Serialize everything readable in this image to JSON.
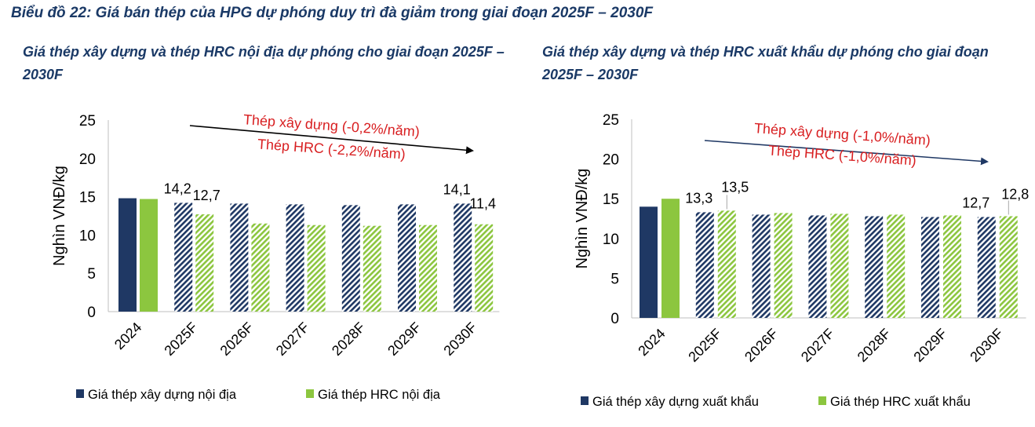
{
  "title": "Biểu đồ 22: Giá bán thép của HPG dự phóng duy trì đà giảm trong giai đoạn 2025F – 2030F",
  "colors": {
    "navy": "#1f3864",
    "green": "#8cc63f",
    "red": "#d81e20",
    "title": "#1a3966"
  },
  "chart_data": [
    {
      "type": "bar",
      "title": "Giá thép xây dựng và thép HRC nội địa dự phóng cho giai đoạn 2025F – 2030F",
      "categories": [
        "2024",
        "2025F",
        "2026F",
        "2027F",
        "2028F",
        "2029F",
        "2030F"
      ],
      "ylabel": "Nghìn VNĐ/kg",
      "ylim": [
        0,
        25
      ],
      "yticks": [
        "0",
        "5",
        "10",
        "15",
        "20",
        "25"
      ],
      "grid": false,
      "legend_position": "bottom",
      "series": [
        {
          "name": "Giá thép xây dựng nội địa",
          "values": [
            14.8,
            14.2,
            14.1,
            14.0,
            13.9,
            14.0,
            14.1
          ],
          "labels": [
            "",
            "14,2",
            "",
            "",
            "",
            "",
            "14,1"
          ]
        },
        {
          "name": "Giá thép HRC nội địa",
          "values": [
            14.7,
            12.7,
            11.5,
            11.3,
            11.2,
            11.3,
            11.4
          ],
          "labels": [
            "",
            "12,7",
            "",
            "",
            "",
            "",
            "11,4"
          ]
        }
      ],
      "annotations": [
        "Thép xây dựng (-0,2%/năm)",
        "Thép HRC (-2,2%/năm)"
      ]
    },
    {
      "type": "bar",
      "title": "Giá thép xây dựng và thép HRC xuất khẩu dự phóng cho giai đoạn 2025F – 2030F",
      "categories": [
        "2024",
        "2025F",
        "2026F",
        "2027F",
        "2028F",
        "2029F",
        "2030F"
      ],
      "ylabel": "Nghìn VNĐ/kg",
      "ylim": [
        0,
        25
      ],
      "yticks": [
        "0",
        "5",
        "10",
        "15",
        "20",
        "25"
      ],
      "grid": false,
      "legend_position": "bottom",
      "series": [
        {
          "name": "Giá thép xây dựng xuất khẩu",
          "values": [
            14.0,
            13.3,
            13.0,
            12.9,
            12.8,
            12.7,
            12.7
          ],
          "labels": [
            "",
            "13,3",
            "",
            "",
            "",
            "",
            "12,7"
          ]
        },
        {
          "name": "Giá thép HRC xuất khẩu",
          "values": [
            15.0,
            13.5,
            13.2,
            13.1,
            13.0,
            12.9,
            12.8
          ],
          "labels": [
            "",
            "13,5",
            "",
            "",
            "",
            "",
            "12,8"
          ]
        }
      ],
      "annotations": [
        "Thép xây dựng (-1,0%/năm)",
        "Thép HRC (-1,0%/năm)"
      ]
    }
  ]
}
